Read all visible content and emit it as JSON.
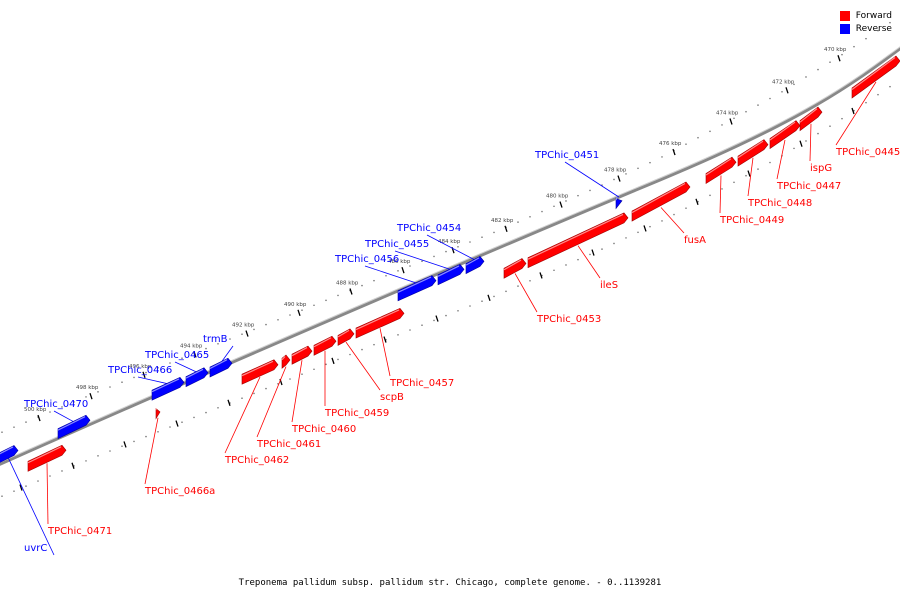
{
  "legend": {
    "forward_label": "Forward",
    "reverse_label": "Reverse"
  },
  "colors": {
    "forward": "#ff0000",
    "reverse": "#0000ff"
  },
  "caption": "Treponema pallidum subsp. pallidum str. Chicago, complete genome. - 0..1139281",
  "ticks": [
    "470 kbp",
    "472 kbp",
    "474 kbp",
    "476 kbp",
    "478 kbp",
    "480 kbp",
    "482 kbp",
    "484 kbp",
    "486 kbp",
    "488 kbp",
    "490 kbp",
    "492 kbp",
    "494 kbp",
    "496 kbp",
    "498 kbp",
    "500 kbp"
  ],
  "genes": [
    {
      "name": "TPChic_0445",
      "strand": "forward"
    },
    {
      "name": "ispG",
      "strand": "forward"
    },
    {
      "name": "TPChic_0447",
      "strand": "forward"
    },
    {
      "name": "TPChic_0448",
      "strand": "forward"
    },
    {
      "name": "TPChic_0449",
      "strand": "forward"
    },
    {
      "name": "fusA",
      "strand": "forward"
    },
    {
      "name": "TPChic_0451",
      "strand": "reverse"
    },
    {
      "name": "ileS",
      "strand": "forward"
    },
    {
      "name": "TPChic_0453",
      "strand": "forward"
    },
    {
      "name": "TPChic_0454",
      "strand": "reverse"
    },
    {
      "name": "TPChic_0455",
      "strand": "reverse"
    },
    {
      "name": "TPChic_0456",
      "strand": "reverse"
    },
    {
      "name": "TPChic_0457",
      "strand": "forward"
    },
    {
      "name": "scpB",
      "strand": "forward"
    },
    {
      "name": "TPChic_0459",
      "strand": "forward"
    },
    {
      "name": "TPChic_0460",
      "strand": "forward"
    },
    {
      "name": "TPChic_0461",
      "strand": "forward"
    },
    {
      "name": "TPChic_0462",
      "strand": "forward"
    },
    {
      "name": "trmB",
      "strand": "reverse"
    },
    {
      "name": "TPChic_0465",
      "strand": "reverse"
    },
    {
      "name": "TPChic_0466",
      "strand": "reverse"
    },
    {
      "name": "TPChic_0466a",
      "strand": "forward"
    },
    {
      "name": "TPChic_0470",
      "strand": "reverse"
    },
    {
      "name": "TPChic_0471",
      "strand": "forward"
    },
    {
      "name": "uvrC",
      "strand": "reverse"
    }
  ]
}
